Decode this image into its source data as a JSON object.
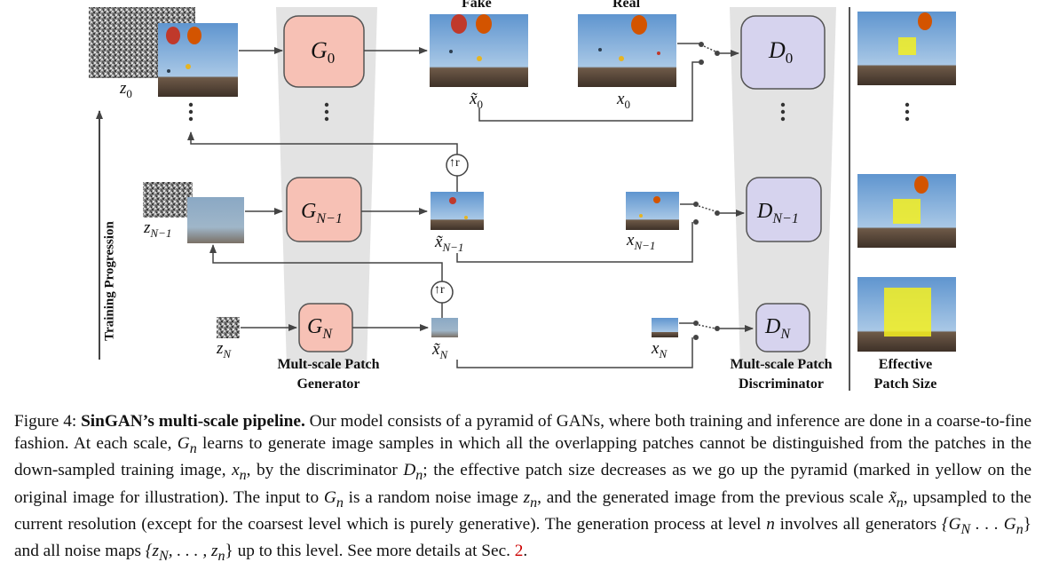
{
  "figure": {
    "top_labels": {
      "fake": "Fake",
      "real": "Real"
    },
    "generators": {
      "g0": "G",
      "g0_sub": "0",
      "gn1": "G",
      "gn1_sub": "N−1",
      "gn": "G",
      "gn_sub": "N"
    },
    "discriminators": {
      "d0": "D",
      "d0_sub": "0",
      "dn1": "D",
      "dn1_sub": "N−1",
      "dn": "D",
      "dn_sub": "N"
    },
    "noise_labels": {
      "z0": "z",
      "z0_sub": "0",
      "zn1": "z",
      "zn1_sub": "N−1",
      "zn": "z",
      "zn_sub": "N"
    },
    "fake_labels": {
      "x0": "x̃",
      "x0_sub": "0",
      "xn1": "x̃",
      "xn1_sub": "N−1",
      "xn": "x̃",
      "xn_sub": "N"
    },
    "real_labels": {
      "x0": "x",
      "x0_sub": "0",
      "xn1": "x",
      "xn1_sub": "N−1",
      "xn": "x",
      "xn_sub": "N"
    },
    "upsample_symbol": "↑r",
    "training_progression": "Training Progression",
    "generator_caption": [
      "Mult-scale Patch",
      "Generator"
    ],
    "discriminator_caption": [
      "Mult-scale Patch",
      "Discriminator"
    ],
    "patch_caption": [
      "Effective",
      "Patch Size"
    ],
    "colors": {
      "generator_fill": "#f7c1b5",
      "discriminator_fill": "#d6d3ee",
      "pyramid": "#e3e3e3",
      "sky": "#7fb0df",
      "crowd": "#5b4a3a",
      "patch": "#f5f020",
      "ref": "#cc0000"
    }
  },
  "caption": {
    "fig_label": "Figure 4: ",
    "bold_title": "SinGAN’s multi-scale pipeline.",
    "t1": " Our model consists of a pyramid of GANs, where both training and inference are done in a coarse-to-fine fashion. At each scale, ",
    "gn": "G",
    "gn_sub": "n",
    "t2": " learns to generate image samples in which all the overlapping patches cannot be distinguished from the patches in the down-sampled training image, ",
    "xn": "x",
    "xn_sub": "n",
    "t3": ", by the discriminator ",
    "dn": "D",
    "dn_sub": "n",
    "t4": "; the effective patch size decreases as we go up the pyramid (marked in yellow on the original image for illustration). The input to ",
    "gn2": "G",
    "gn2_sub": "n",
    "t5": " is a random noise image ",
    "zn": "z",
    "zn_sub": "n",
    "t6": ", and the generated image from the previous scale ",
    "xtn": "x̃",
    "xtn_sub": "n",
    "t7": ", upsampled to the current resolution (except for the coarsest level which is purely generative). The generation process at level ",
    "n": "n",
    "t8": " involves all generators ",
    "set_g": "{G",
    "set_g_sub1": "N",
    "set_g_mid": " . . . G",
    "set_g_sub2": "n",
    "set_g_end": "}",
    "t9": " and all noise maps ",
    "set_z": "{z",
    "set_z_sub1": "N",
    "set_z_mid": ", . . . , z",
    "set_z_sub2": "n",
    "set_z_end": "}",
    "t10": " up to this level. See more details at Sec. ",
    "sec_ref": "2",
    "t11": "."
  }
}
